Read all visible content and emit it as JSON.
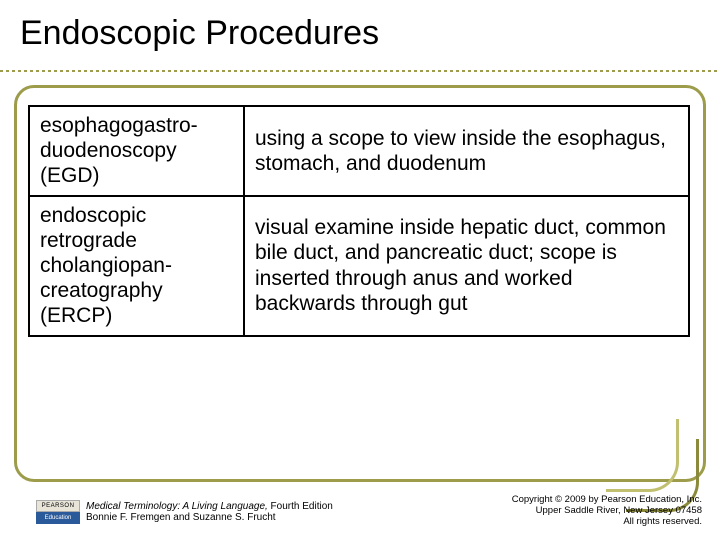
{
  "title": "Endoscopic Procedures",
  "table": {
    "rows": [
      {
        "term": "esophagogastro-\nduodenoscopy (EGD)",
        "definition": "using a scope to view inside the esophagus, stomach, and duodenum"
      },
      {
        "term": "endoscopic retrograde cholangiopan-\ncreatography (ERCP)",
        "definition": "visual examine inside hepatic duct, common bile duct, and pancreatic duct; scope is inserted through anus and worked backwards through gut"
      }
    ]
  },
  "logo": {
    "top": "PEARSON",
    "bottom": "Education"
  },
  "credit": {
    "book": "Medical Terminology: A Living Language,",
    "edition": " Fourth Edition",
    "authors": "Bonnie F. Fremgen and Suzanne S. Frucht"
  },
  "copyright": {
    "line1": "Copyright © 2009 by Pearson Education, Inc.",
    "line2": "Upper Saddle River, New Jersey 07458",
    "line3": "All rights reserved."
  },
  "colors": {
    "accent": "#9c9c4a",
    "accent_light": "#c0c070",
    "accent_dark": "#8a8a3a",
    "logo_blue": "#2a5a9a"
  }
}
